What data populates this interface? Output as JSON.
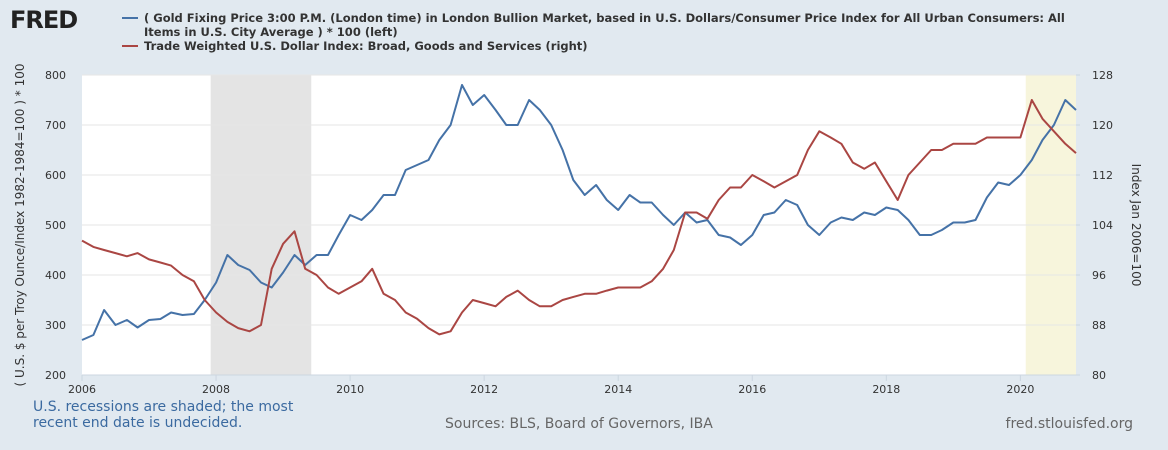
{
  "chart_data": {
    "type": "line",
    "logo": "FRED",
    "note": "U.S. recessions are shaded; the most recent end date is undecided.",
    "source": "Sources: BLS, Board of Governors, IBA",
    "site": "fred.stlouisfed.org",
    "ylabel": "( U.S. $ per Troy Ounce/Index 1982-1984=100 ) * 100",
    "y2label": "Index Jan 2006=100",
    "xlim": [
      2006,
      2020.83
    ],
    "xticks": [
      2006,
      2008,
      2010,
      2012,
      2014,
      2016,
      2018,
      2020
    ],
    "ylim": [
      200,
      800
    ],
    "yticks": [
      200,
      300,
      400,
      500,
      600,
      700,
      800
    ],
    "y2lim": [
      80,
      128
    ],
    "y2ticks": [
      80,
      88,
      96,
      104,
      112,
      120,
      128
    ],
    "grid": true,
    "recessions": [
      {
        "start": 2007.92,
        "end": 2009.42,
        "color": "#e4e4e4"
      },
      {
        "start": 2020.08,
        "end": 2020.83,
        "color": "#f7f5dc"
      }
    ],
    "x": [
      2006,
      2006.17,
      2006.33,
      2006.5,
      2006.67,
      2006.83,
      2007,
      2007.17,
      2007.33,
      2007.5,
      2007.67,
      2007.83,
      2008,
      2008.17,
      2008.33,
      2008.5,
      2008.67,
      2008.83,
      2009,
      2009.17,
      2009.33,
      2009.5,
      2009.67,
      2009.83,
      2010,
      2010.17,
      2010.33,
      2010.5,
      2010.67,
      2010.83,
      2011,
      2011.17,
      2011.33,
      2011.5,
      2011.67,
      2011.83,
      2012,
      2012.17,
      2012.33,
      2012.5,
      2012.67,
      2012.83,
      2013,
      2013.17,
      2013.33,
      2013.5,
      2013.67,
      2013.83,
      2014,
      2014.17,
      2014.33,
      2014.5,
      2014.67,
      2014.83,
      2015,
      2015.17,
      2015.33,
      2015.5,
      2015.67,
      2015.83,
      2016,
      2016.17,
      2016.33,
      2016.5,
      2016.67,
      2016.83,
      2017,
      2017.17,
      2017.33,
      2017.5,
      2017.67,
      2017.83,
      2018,
      2018.17,
      2018.33,
      2018.5,
      2018.67,
      2018.83,
      2019,
      2019.17,
      2019.33,
      2019.5,
      2019.67,
      2019.83,
      2020,
      2020.17,
      2020.33,
      2020.5,
      2020.67,
      2020.83
    ],
    "series": [
      {
        "name": "( Gold Fixing Price 3:00 P.M. (London time) in London Bullion Market, based in U.S. Dollars/Consumer Price Index for All Urban Consumers: All Items in U.S. City Average ) * 100 (left)",
        "color": "#4572a7",
        "axis": "y",
        "values": [
          270,
          280,
          330,
          300,
          310,
          295,
          310,
          312,
          325,
          320,
          322,
          350,
          385,
          440,
          420,
          410,
          385,
          375,
          405,
          440,
          420,
          440,
          440,
          480,
          520,
          510,
          530,
          560,
          560,
          610,
          620,
          630,
          670,
          700,
          780,
          740,
          760,
          730,
          700,
          700,
          750,
          730,
          700,
          650,
          590,
          560,
          580,
          550,
          530,
          560,
          545,
          545,
          520,
          500,
          525,
          505,
          510,
          480,
          475,
          460,
          480,
          520,
          525,
          550,
          540,
          500,
          480,
          505,
          515,
          510,
          525,
          520,
          535,
          530,
          510,
          480,
          480,
          490,
          505,
          505,
          510,
          555,
          585,
          580,
          600,
          630,
          670,
          700,
          750,
          730
        ]
      },
      {
        "name": "Trade Weighted U.S. Dollar Index: Broad, Goods and Services (right)",
        "color": "#aa4643",
        "axis": "y2",
        "values": [
          101.5,
          100.5,
          100,
          99.5,
          99,
          99.5,
          98.5,
          98,
          97.5,
          96,
          95,
          92,
          90,
          88.5,
          87.5,
          87,
          88,
          97,
          101,
          103,
          97,
          96,
          94,
          93,
          94,
          95,
          97,
          93,
          92,
          90,
          89,
          87.5,
          86.5,
          87,
          90,
          92,
          91.5,
          91,
          92.5,
          93.5,
          92,
          91,
          91,
          92,
          92.5,
          93,
          93,
          93.5,
          94,
          94,
          94,
          95,
          97,
          100,
          106,
          106,
          105,
          108,
          110,
          110,
          112,
          111,
          110,
          111,
          112,
          116,
          119,
          118,
          117,
          114,
          113,
          114,
          111,
          108,
          112,
          114,
          116,
          116,
          117,
          117,
          117,
          118,
          118,
          118,
          118,
          124,
          121,
          119,
          117,
          115.5
        ]
      }
    ]
  }
}
